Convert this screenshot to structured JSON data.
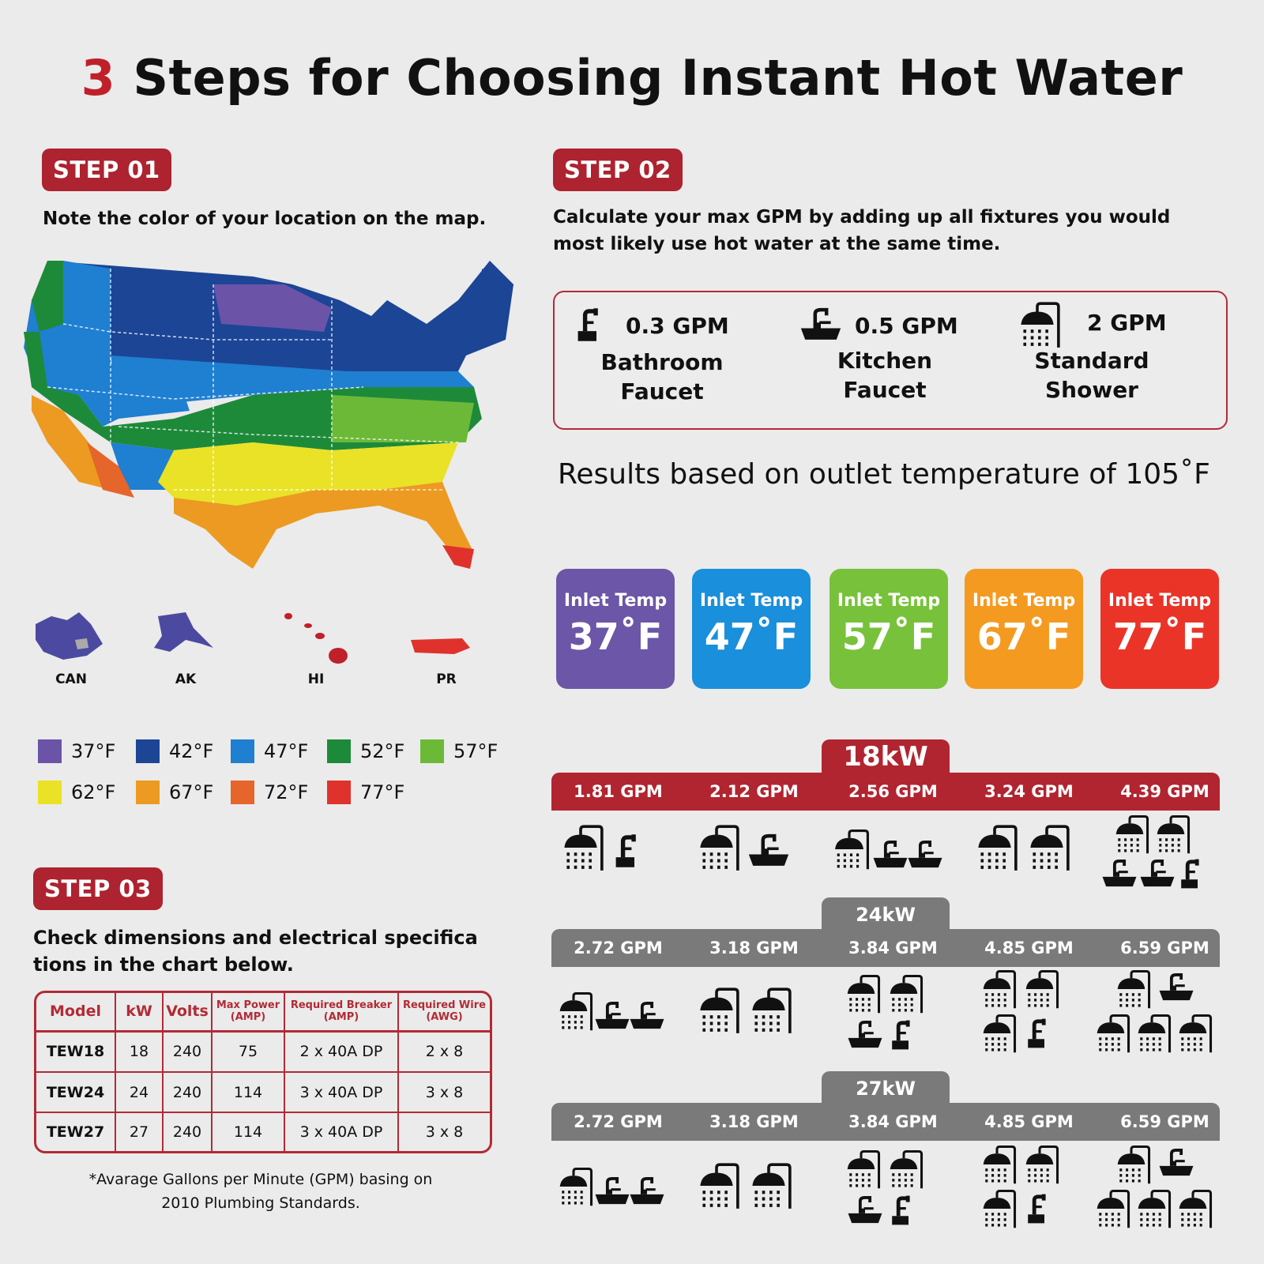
{
  "title": {
    "number": "3",
    "text": "Steps for Choosing Instant Hot Water"
  },
  "step1": {
    "badge": "STEP 01",
    "instruction": "Note the color of your location on the map.",
    "insets": [
      "CAN",
      "AK",
      "HI",
      "PR"
    ],
    "legend": [
      {
        "label": "37°F",
        "color": "#6b53a8"
      },
      {
        "label": "42°F",
        "color": "#1c4596"
      },
      {
        "label": "47°F",
        "color": "#1f7fd0"
      },
      {
        "label": "52°F",
        "color": "#1d8a3a"
      },
      {
        "label": "57°F",
        "color": "#6cb938"
      },
      {
        "label": "62°F",
        "color": "#e9e226"
      },
      {
        "label": "67°F",
        "color": "#ec9a22"
      },
      {
        "label": "72°F",
        "color": "#e5652a"
      },
      {
        "label": "77°F",
        "color": "#e0322c"
      }
    ]
  },
  "step2": {
    "badge": "STEP 02",
    "instruction_line1": "Calculate your max GPM by adding up all fixtures you would",
    "instruction_line2": "most likely use hot water at the same time.",
    "fixtures": [
      {
        "gpm": "0.3 GPM",
        "name_line1": "Bathroom",
        "name_line2": "Faucet",
        "icon": "bathroom-faucet-icon"
      },
      {
        "gpm": "0.5 GPM",
        "name_line1": "Kitchen",
        "name_line2": "Faucet",
        "icon": "kitchen-faucet-icon"
      },
      {
        "gpm": "2 GPM",
        "name_line1": "Standard",
        "name_line2": "Shower",
        "icon": "shower-icon"
      }
    ],
    "results_text": "Results based on outlet temperature of 105˚F",
    "inlet_temps": [
      {
        "label": "Inlet Temp",
        "value": "37˚F",
        "color": "#6c56a7"
      },
      {
        "label": "Inlet Temp",
        "value": "47˚F",
        "color": "#1a8fdb"
      },
      {
        "label": "Inlet Temp",
        "value": "57˚F",
        "color": "#77c23a"
      },
      {
        "label": "Inlet Temp",
        "value": "67˚F",
        "color": "#f59a20"
      },
      {
        "label": "Inlet Temp",
        "value": "77˚F",
        "color": "#ea3428"
      }
    ],
    "models": [
      {
        "kw": "18kW",
        "color": "#b12530",
        "gpm": [
          "1.81 GPM",
          "2.12 GPM",
          "2.56 GPM",
          "3.24 GPM",
          "4.39 GPM"
        ]
      },
      {
        "kw": "24kW",
        "color": "#7a7a7a",
        "gpm": [
          "2.72 GPM",
          "3.18 GPM",
          "3.84 GPM",
          "4.85 GPM",
          "6.59 GPM"
        ]
      },
      {
        "kw": "27kW",
        "color": "#7a7a7a",
        "gpm": [
          "2.72 GPM",
          "3.18 GPM",
          "3.84 GPM",
          "4.85 GPM",
          "6.59 GPM"
        ]
      }
    ]
  },
  "step3": {
    "badge": "STEP 03",
    "instruction_line1": "Check dimensions and electrical specifica",
    "instruction_line2": "tions in the chart below.",
    "table": {
      "headers": [
        "Model",
        "kW",
        "Volts",
        "Max Power (AMP)",
        "Required Breaker (AMP)",
        "Required Wire (AWG)"
      ],
      "rows": [
        [
          "TEW18",
          "18",
          "240",
          "75",
          "2 x 40A DP",
          "2 x 8"
        ],
        [
          "TEW24",
          "24",
          "240",
          "114",
          "3 x 40A DP",
          "3 x 8"
        ],
        [
          "TEW27",
          "27",
          "240",
          "114",
          "3 x 40A DP",
          "3 x 8"
        ]
      ]
    },
    "footnote_line1": "*Avarage Gallons per Minute (GPM) basing on",
    "footnote_line2": "2010 Plumbing Standards."
  }
}
